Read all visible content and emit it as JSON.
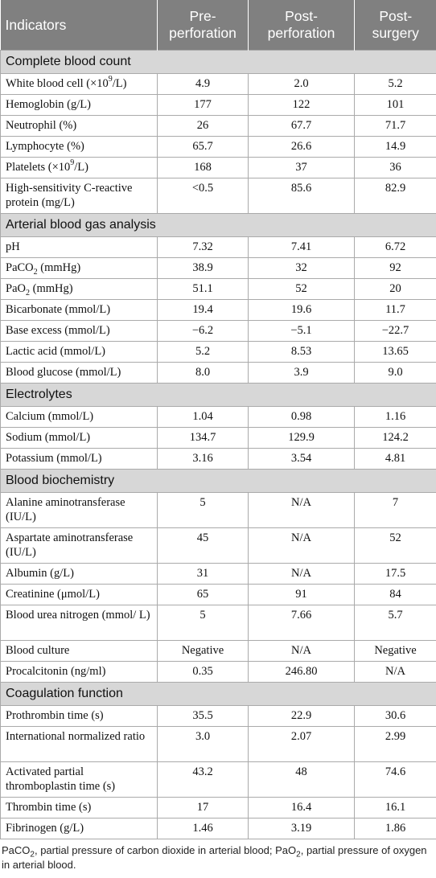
{
  "headers": [
    "Indicators",
    "Pre-\nperforation",
    "Post-\nperforation",
    "Post-\nsurgery"
  ],
  "sections": [
    {
      "title": "Complete blood count",
      "rows": [
        {
          "label": "White blood cell (×10<sup>9</sup>/L)",
          "values": [
            "4.9",
            "2.0",
            "5.2"
          ]
        },
        {
          "label": "Hemoglobin (g/L)",
          "values": [
            "177",
            "122",
            "101"
          ]
        },
        {
          "label": "Neutrophil (%)",
          "values": [
            "26",
            "67.7",
            "71.7"
          ]
        },
        {
          "label": "Lymphocyte (%)",
          "values": [
            "65.7",
            "26.6",
            "14.9"
          ]
        },
        {
          "label": "Platelets (×10<sup>9</sup>/L)",
          "values": [
            "168",
            "37",
            "36"
          ]
        },
        {
          "label": "High-sensitivity C-reactive protein (mg/L)",
          "values": [
            "<0.5",
            "85.6",
            "82.9"
          ],
          "tall": true
        }
      ]
    },
    {
      "title": "Arterial blood gas analysis",
      "rows": [
        {
          "label": "pH",
          "values": [
            "7.32",
            "7.41",
            "6.72"
          ]
        },
        {
          "label": "PaCO<sub>2</sub> (mmHg)",
          "values": [
            "38.9",
            "32",
            "92"
          ]
        },
        {
          "label": "PaO<sub>2</sub> (mmHg)",
          "values": [
            "51.1",
            "52",
            "20"
          ]
        },
        {
          "label": "Bicarbonate (mmol/L)",
          "values": [
            "19.4",
            "19.6",
            "11.7"
          ]
        },
        {
          "label": "Base excess (mmol/L)",
          "values": [
            "−6.2",
            "−5.1",
            "−22.7"
          ]
        },
        {
          "label": "Lactic acid (mmol/L)",
          "values": [
            "5.2",
            "8.53",
            "13.65"
          ]
        },
        {
          "label": "Blood glucose (mmol/L)",
          "values": [
            "8.0",
            "3.9",
            "9.0"
          ]
        }
      ]
    },
    {
      "title": "Electrolytes",
      "rows": [
        {
          "label": "Calcium (mmol/L)",
          "values": [
            "1.04",
            "0.98",
            "1.16"
          ]
        },
        {
          "label": "Sodium (mmol/L)",
          "values": [
            "134.7",
            "129.9",
            "124.2"
          ]
        },
        {
          "label": "Potassium (mmol/L)",
          "values": [
            "3.16",
            "3.54",
            "4.81"
          ]
        }
      ]
    },
    {
      "title": "Blood biochemistry",
      "rows": [
        {
          "label": "Alanine aminotransferase (IU/L)",
          "values": [
            "5",
            "N/A",
            "7"
          ],
          "tall": true
        },
        {
          "label": "Aspartate aminotransferase (IU/L)",
          "values": [
            "45",
            "N/A",
            "52"
          ],
          "tall": true
        },
        {
          "label": "Albumin (g/L)",
          "values": [
            "31",
            "N/A",
            "17.5"
          ]
        },
        {
          "label": "Creatinine (μmol/L)",
          "values": [
            "65",
            "91",
            "84"
          ]
        },
        {
          "label": "Blood urea nitrogen (mmol/ L)",
          "values": [
            "5",
            "7.66",
            "5.7"
          ],
          "tall": true
        },
        {
          "label": "Blood culture",
          "values": [
            "Negative",
            "N/A",
            "Negative"
          ]
        },
        {
          "label": "Procalcitonin (ng/ml)",
          "values": [
            "0.35",
            "246.80",
            "N/A"
          ]
        }
      ]
    },
    {
      "title": "Coagulation function",
      "rows": [
        {
          "label": "Prothrombin time (s)",
          "values": [
            "35.5",
            "22.9",
            "30.6"
          ]
        },
        {
          "label": "International normalized ratio",
          "values": [
            "3.0",
            "2.07",
            "2.99"
          ],
          "tall": true
        },
        {
          "label": "Activated partial thromboplastin time (s)",
          "values": [
            "43.2",
            "48",
            "74.6"
          ],
          "tall": true
        },
        {
          "label": "Thrombin time (s)",
          "values": [
            "17",
            "16.4",
            "16.1"
          ]
        },
        {
          "label": "Fibrinogen (g/L)",
          "values": [
            "1.46",
            "3.19",
            "1.86"
          ]
        }
      ]
    }
  ],
  "footnote": "PaCO<sub>2</sub>, partial pressure of carbon dioxide in arterial blood; PaO<sub>2</sub>, partial pressure of oxygen in arterial blood."
}
